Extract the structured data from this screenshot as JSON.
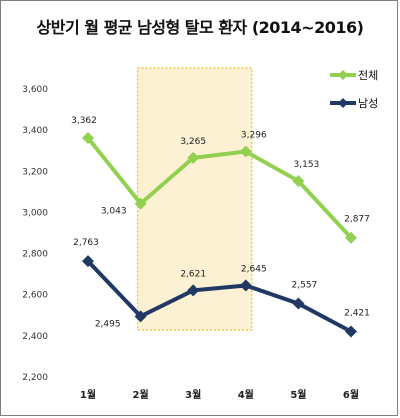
{
  "chart_data": {
    "type": "line",
    "title": "상반기 월 평균 남성형 탈모 환자 (2014~2016)",
    "categories": [
      "1월",
      "2월",
      "3월",
      "4월",
      "5월",
      "6월"
    ],
    "ylim": [
      2200,
      3600
    ],
    "yticks": [
      "2,200",
      "2,400",
      "2,600",
      "2,800",
      "3,000",
      "3,200",
      "3,400",
      "3,600"
    ],
    "grid": false,
    "legend": "right",
    "highlight_range": [
      "2월",
      "4월"
    ],
    "series": [
      {
        "name": "전체",
        "color": "#92d050",
        "marker": "diamond",
        "values": [
          3362,
          3043,
          3265,
          3296,
          3153,
          2877
        ],
        "labels": [
          "3,362",
          "3,043",
          "3,265",
          "3,296",
          "3,153",
          "2,877"
        ]
      },
      {
        "name": "남성",
        "color": "#1f3864",
        "marker": "diamond",
        "values": [
          2763,
          2495,
          2621,
          2645,
          2557,
          2421
        ],
        "labels": [
          "2,763",
          "2,495",
          "2,621",
          "2,645",
          "2,557",
          "2,421"
        ]
      }
    ]
  }
}
